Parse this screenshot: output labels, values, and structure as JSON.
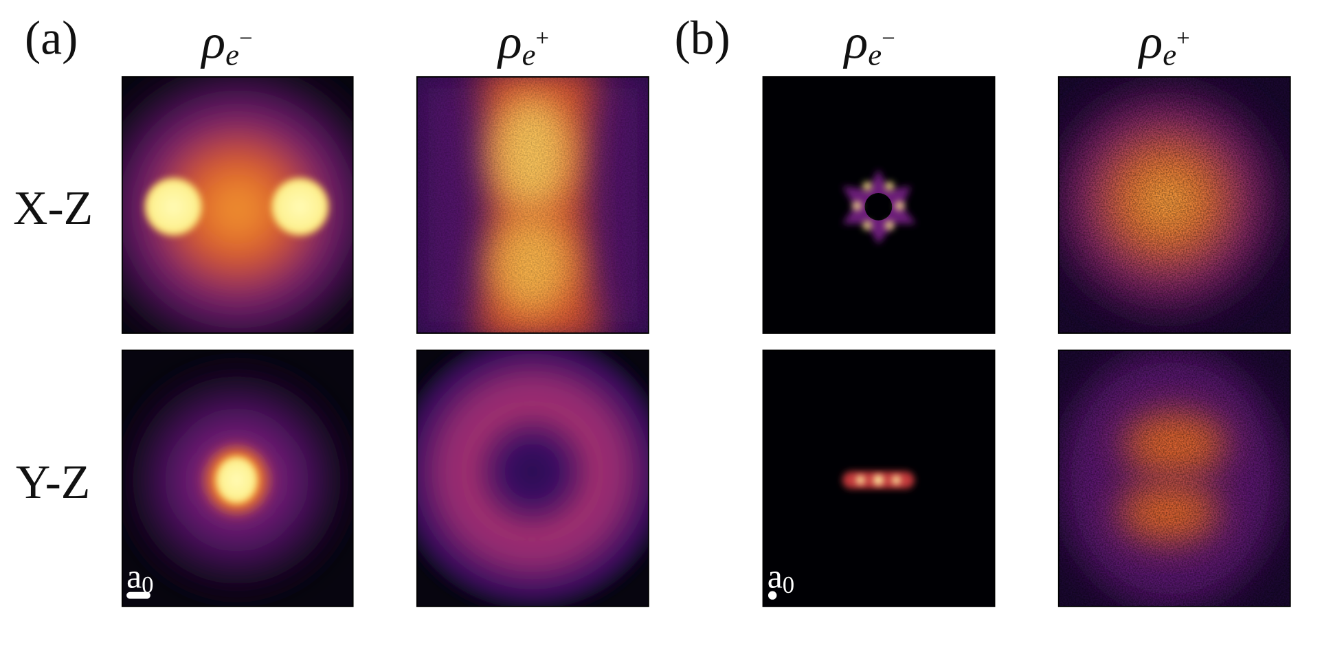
{
  "figure": {
    "panels": [
      {
        "label": "(a)",
        "columns": [
          {
            "symbol": "ρ",
            "subscript": "e",
            "superscript": "−"
          },
          {
            "symbol": "ρ",
            "subscript": "e",
            "superscript": "+"
          }
        ],
        "scale_bar": {
          "base": "a",
          "subscript": "0"
        }
      },
      {
        "label": "(b)",
        "columns": [
          {
            "symbol": "ρ",
            "subscript": "e",
            "superscript": "−"
          },
          {
            "symbol": "ρ",
            "subscript": "e",
            "superscript": "+"
          }
        ],
        "scale_bar": {
          "base": "a",
          "subscript": "0"
        }
      }
    ],
    "rows": [
      "X-Z",
      "Y-Z"
    ]
  }
}
